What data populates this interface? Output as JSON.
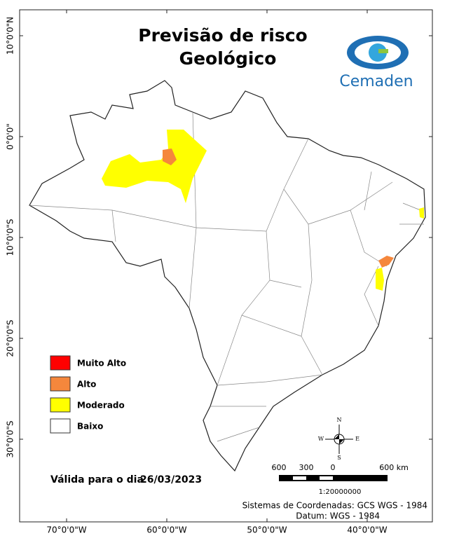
{
  "map": {
    "title": [
      "Previsão de risco",
      "Geológico"
    ],
    "logo": "Cemaden",
    "lat_ticks": [
      {
        "value": 10,
        "label": "10°0'0\"N"
      },
      {
        "value": 0,
        "label": "0°0'0\""
      },
      {
        "value": -10,
        "label": "10°0'0\"S"
      },
      {
        "value": -20,
        "label": "20°0'0\"S"
      },
      {
        "value": -30,
        "label": "30°0'0\"S"
      }
    ],
    "lon_ticks": [
      {
        "value": -70,
        "label": "70°0'0\"W"
      },
      {
        "value": -60,
        "label": "60°0'0\"W"
      },
      {
        "value": -50,
        "label": "50°0'0\"W"
      },
      {
        "value": -40,
        "label": "40°0'0\"W"
      }
    ],
    "legend": [
      {
        "label": "Muito Alto",
        "color": "#ff0000"
      },
      {
        "label": "Alto",
        "color": "#f5873c"
      },
      {
        "label": "Moderado",
        "color": "#ffff00"
      },
      {
        "label": "Baixo",
        "color": "#ffffff"
      }
    ],
    "valid_label": "Válida para o dia",
    "valid_date": "26/03/2023",
    "compass": {
      "n": "N",
      "s": "S",
      "e": "E",
      "w": "W"
    },
    "scale_labels": [
      "600",
      "300",
      "0",
      "600 km"
    ],
    "scale_ratio": "1:20000000",
    "crs": "Sistemas de Coordenadas: GCS WGS - 1984",
    "datum": "Datum: WGS - 1984"
  }
}
